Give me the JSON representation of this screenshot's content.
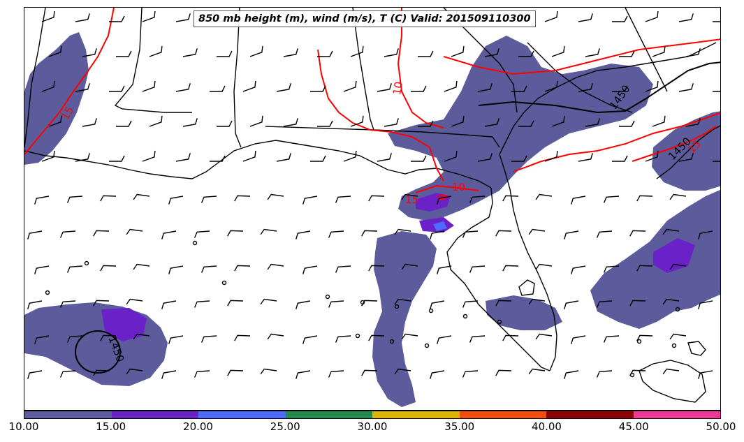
{
  "title": "850 mb height (m), wind (m/s), T (C) Valid: 201509110300",
  "colorbar": {
    "ticks": [
      "10.00",
      "15.00",
      "20.00",
      "25.00",
      "30.00",
      "35.00",
      "40.00",
      "45.00",
      "50.00"
    ],
    "colors": [
      "#5c5c9c",
      "#6a22c8",
      "#4f6bff",
      "#228a4a",
      "#d9b400",
      "#f24d0c",
      "#8f0000",
      "#f0379a"
    ]
  },
  "contours": {
    "height_labels": [
      "1450",
      "1450",
      "1450"
    ],
    "temperature_labels": [
      "15",
      "10",
      "15",
      "10",
      "15"
    ]
  },
  "colors": {
    "coastline": "#000000",
    "temperature_contour": "#ff0000",
    "height_contour": "#000000",
    "barb": "#000000"
  }
}
